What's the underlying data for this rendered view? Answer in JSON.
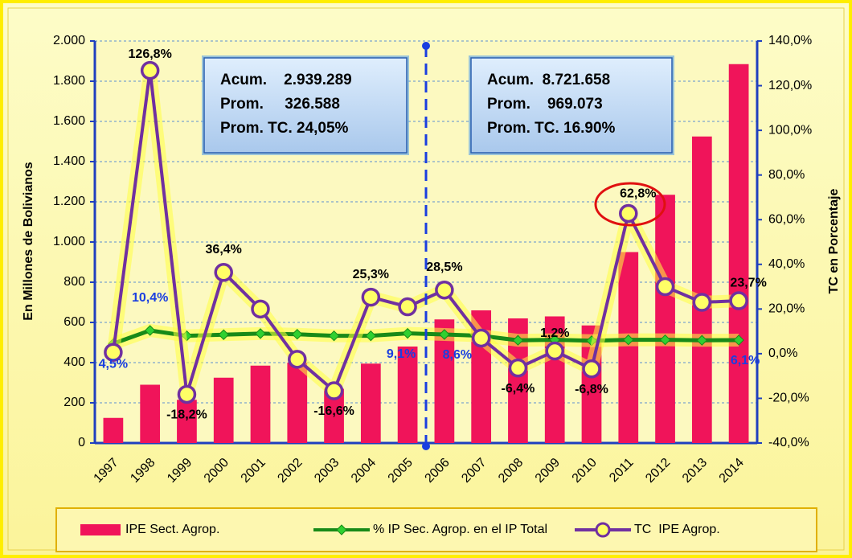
{
  "chart_data": {
    "type": "bar-line",
    "y_label": "En Millones de Bolivianos",
    "y2_label": "TC en  Porcentaje",
    "categories": [
      "1997",
      "1998",
      "1999",
      "2000",
      "2001",
      "2002",
      "2003",
      "2004",
      "2005",
      "2006",
      "2007",
      "2008",
      "2009",
      "2010",
      "2011",
      "2012",
      "2013",
      "2014"
    ],
    "series": [
      {
        "name": "IPE Sect. Agrop.",
        "type": "bar",
        "color": "#f0145a",
        "values": [
          125,
          290,
          215,
          325,
          385,
          400,
          270,
          395,
          480,
          615,
          660,
          620,
          630,
          585,
          950,
          1235,
          1525,
          1885
        ]
      },
      {
        "name": "% IP Sec. Agrop. en el IP Total",
        "type": "line",
        "axis": "y2",
        "color": "#188a18",
        "values": [
          4.5,
          10.4,
          8,
          8.5,
          9,
          8.7,
          8,
          8,
          9.1,
          8.6,
          8,
          6,
          6.2,
          5.8,
          6.2,
          6.2,
          6,
          6.1
        ],
        "value_labels": [
          "4,5%",
          "10,4%",
          null,
          null,
          null,
          null,
          null,
          null,
          "9,1%",
          "8,6%",
          null,
          null,
          null,
          null,
          null,
          null,
          null,
          "6,1%"
        ]
      },
      {
        "name": "TC  IPE Agrop.",
        "type": "line",
        "axis": "y2",
        "color": "#7030a0",
        "values": [
          0.6,
          126.8,
          -18.2,
          36.4,
          20,
          -2.5,
          -16.6,
          25.3,
          21,
          28.5,
          7,
          -6.4,
          1.2,
          -6.8,
          62.8,
          30,
          23,
          23.7
        ],
        "value_labels": [
          null,
          "126,8%",
          "-18,2%",
          "36,4%",
          null,
          null,
          "-16,6%",
          "25,3%",
          null,
          "28,5%",
          null,
          "-6,4%",
          "1,2%",
          "-6,8%",
          "62,8%",
          null,
          null,
          "23,7%"
        ]
      }
    ],
    "ylim": [
      0,
      2000
    ],
    "yticks": [
      0,
      200,
      400,
      600,
      800,
      {
        "value": 1000,
        "label": "1.000"
      },
      {
        "value": 1200,
        "label": "1.200"
      },
      {
        "value": 1400,
        "label": "1.400"
      },
      {
        "value": 1600,
        "label": "1.600"
      },
      {
        "value": 1800,
        "label": "1.800"
      },
      {
        "value": 2000,
        "label": "2.000"
      }
    ],
    "y2lim": [
      -40,
      140
    ],
    "y2ticks": [
      {
        "value": -40,
        "label": "-40,0%"
      },
      {
        "value": -20,
        "label": "-20,0%"
      },
      {
        "value": 0,
        "label": "0,0%"
      },
      {
        "value": 20,
        "label": "20,0%"
      },
      {
        "value": 40,
        "label": "40,0%"
      },
      {
        "value": 60,
        "label": "60,0%"
      },
      {
        "value": 80,
        "label": "80,0%"
      },
      {
        "value": 100,
        "label": "100,0%"
      },
      {
        "value": 120,
        "label": "120,0%"
      },
      {
        "value": 140,
        "label": "140,0%"
      }
    ],
    "grid": true,
    "annotations": [
      {
        "lines": [
          "Acum.    2.939.289",
          "Prom.     326.588",
          "Prom. TC. 24,05%"
        ]
      },
      {
        "lines": [
          "Acum.  8.721.658",
          "Prom.    969.073",
          "Prom. TC. 16.90%"
        ]
      }
    ]
  }
}
